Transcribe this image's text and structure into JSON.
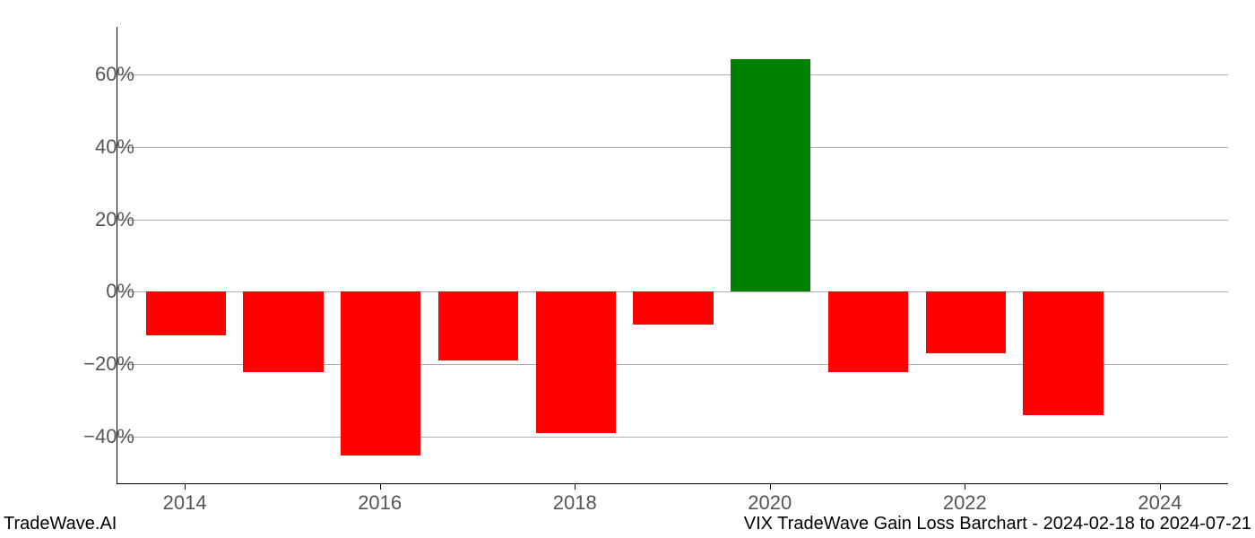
{
  "chart": {
    "type": "bar",
    "years": [
      2014,
      2015,
      2016,
      2017,
      2018,
      2019,
      2020,
      2021,
      2022,
      2023
    ],
    "values": [
      -12,
      -22,
      -45,
      -19,
      -39,
      -9,
      64,
      -22,
      -17,
      -34
    ],
    "xtick_labels": [
      "2014",
      "2016",
      "2018",
      "2020",
      "2022",
      "2024"
    ],
    "xtick_positions": [
      2014,
      2016,
      2018,
      2020,
      2022,
      2024
    ],
    "ytick_labels": [
      "−40%",
      "−20%",
      "0%",
      "20%",
      "40%",
      "60%"
    ],
    "ytick_values": [
      -40,
      -20,
      0,
      20,
      40,
      60
    ],
    "ylim": [
      -53,
      73
    ],
    "xlim": [
      2013.3,
      2024.7
    ],
    "positive_color": "#008000",
    "negative_color": "#ff0000",
    "grid_color": "#b0b0b0",
    "text_color": "#555555",
    "background_color": "#ffffff",
    "bar_width_years": 0.82,
    "label_fontsize": 22,
    "footer_fontsize": 20
  },
  "footer": {
    "left": "TradeWave.AI",
    "right": "VIX TradeWave Gain Loss Barchart - 2024-02-18 to 2024-07-21"
  }
}
